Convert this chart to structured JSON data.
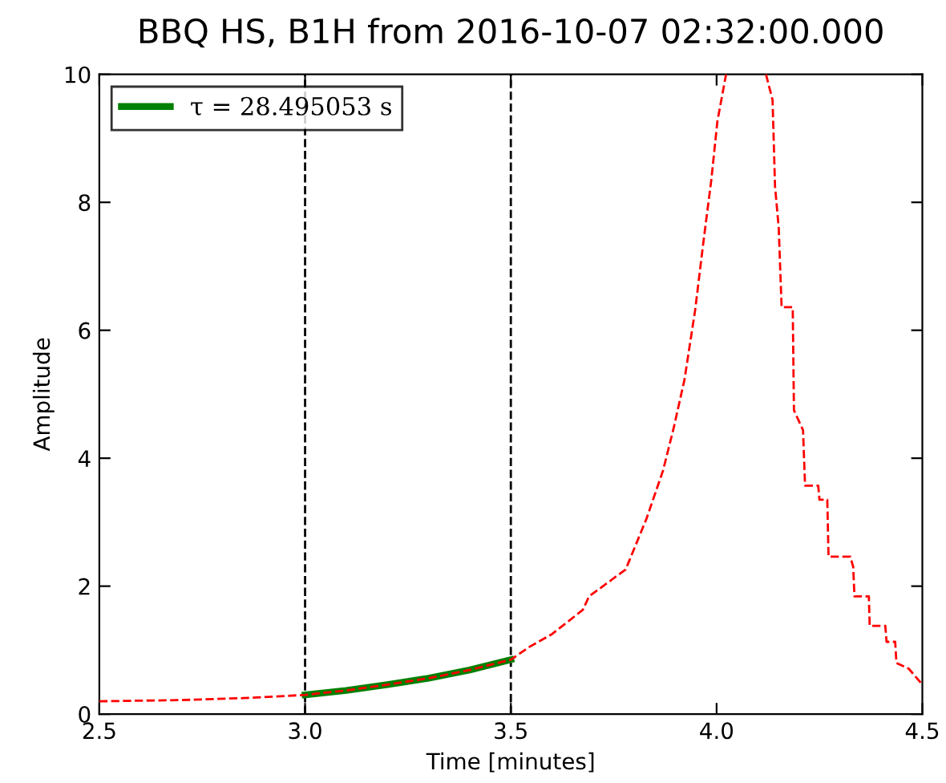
{
  "chart_data": {
    "type": "line",
    "title": "BBQ HS, B1H from 2016-10-07 02:32:00.000",
    "xlabel": "Time [minutes]",
    "ylabel": "Amplitude",
    "xlim": [
      2.5,
      4.5
    ],
    "ylim": [
      0,
      10
    ],
    "xticks": [
      2.5,
      {
        "value": 3,
        "label": "3.0"
      },
      3.5,
      {
        "value": 4,
        "label": "4.0"
      },
      4.5
    ],
    "yticks": [
      0,
      2,
      4,
      6,
      8,
      10
    ],
    "grid": false,
    "legend": "top left",
    "marker": "none",
    "ref_lines": [
      {
        "axis": "x",
        "value": 3.0,
        "color": "#000000",
        "line_style": "dashed"
      },
      {
        "axis": "x",
        "value": 3.5,
        "color": "#000000",
        "line_style": "dashed"
      }
    ],
    "series": [
      {
        "color": "#ff0000",
        "line_style": "dashed",
        "x": [
          2.5,
          2.7,
          2.85,
          3.0,
          3.1,
          3.2,
          3.3,
          3.4,
          3.5,
          3.545,
          3.6,
          3.675,
          3.69,
          3.779,
          3.83,
          3.87,
          3.896,
          3.922,
          3.948,
          3.967,
          3.987,
          4.002,
          4.023,
          4.07,
          4.12,
          4.136,
          4.142,
          4.151,
          4.158,
          4.185,
          4.188,
          4.21,
          4.215,
          4.247,
          4.25,
          4.269,
          4.272,
          4.325,
          4.332,
          4.335,
          4.37,
          4.372,
          4.41,
          4.413,
          4.434,
          4.437,
          4.467,
          4.5
        ],
        "values": [
          0.2,
          0.22,
          0.25,
          0.3,
          0.37,
          0.46,
          0.56,
          0.69,
          0.85,
          1.05,
          1.25,
          1.63,
          1.84,
          2.26,
          3.06,
          3.81,
          4.48,
          5.23,
          6.32,
          7.33,
          8.34,
          9.27,
          10,
          null,
          10,
          9.6,
          8.25,
          7.6,
          6.36,
          6.36,
          4.75,
          4.44,
          3.57,
          3.57,
          3.35,
          3.35,
          2.46,
          2.46,
          2.3,
          1.84,
          1.84,
          1.38,
          1.38,
          1.13,
          1.13,
          0.8,
          0.71,
          0.46
        ]
      },
      {
        "name": "τ = 28.495053 s",
        "color": "#008000",
        "line_style": "solid",
        "x": [
          3.0,
          3.1,
          3.2,
          3.3,
          3.4,
          3.5
        ],
        "values": [
          0.3,
          0.37,
          0.46,
          0.56,
          0.69,
          0.85
        ]
      }
    ]
  }
}
